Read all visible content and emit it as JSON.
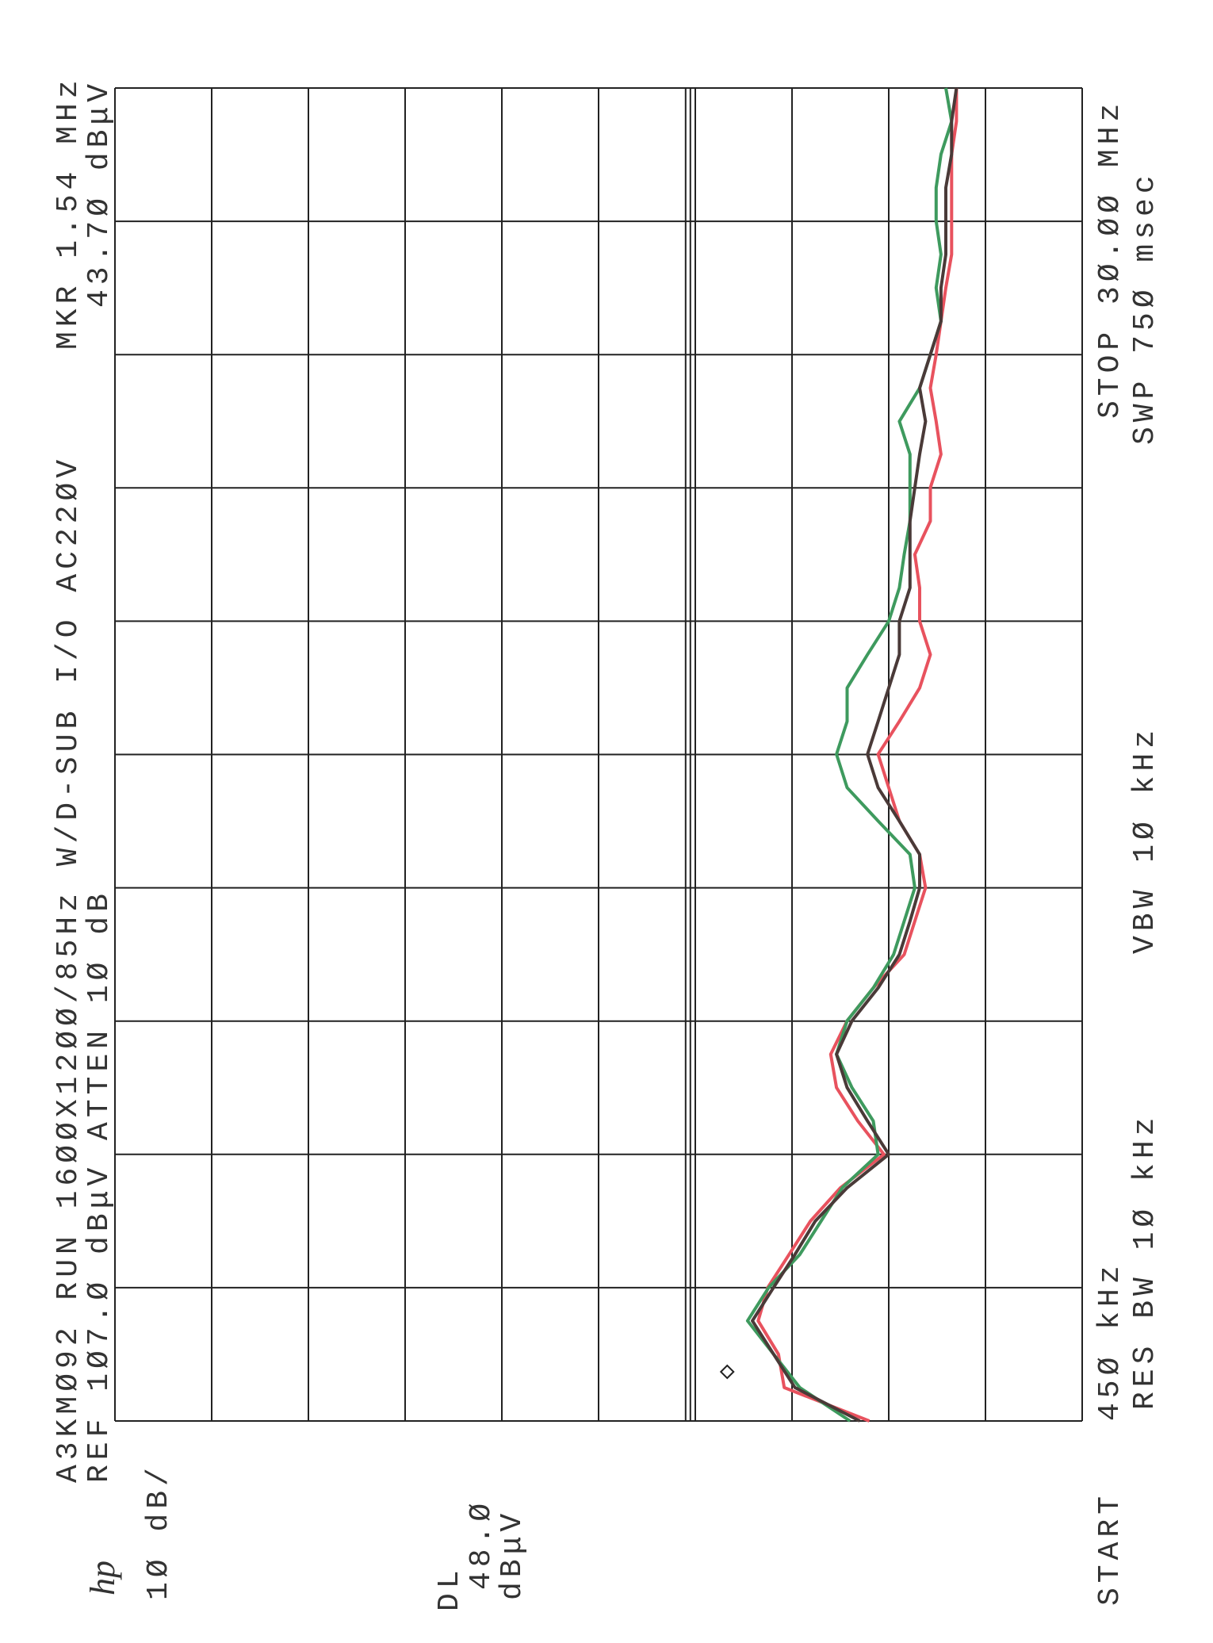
{
  "chart_data": {
    "type": "line",
    "title": "A3KMØ92 RUN 16ØØX12ØØ/85Hz W/D-SUB I/O AC22ØV",
    "subtitle": "REF 1Ø7.Ø dBμV   ATTEN 1Ø dB",
    "scale_label": "1Ø dB/",
    "logo": "hp",
    "marker": {
      "x": 1.54,
      "y": 43.7,
      "label": "MKR 1.54 MHz",
      "value_label": "43.7Ø dBμV"
    },
    "display_line": {
      "name": "DL",
      "value": 48,
      "label": "48.Ø",
      "unit": "dBμV"
    },
    "start_label": "START",
    "start_value": "45Ø kHz",
    "stop_label": "STOP 3Ø.ØØ MHz",
    "res_bw": "RES BW 1Ø kHz",
    "vbw": "VBW 1Ø kHz",
    "sweep": "SWP 75Ø msec",
    "xlim": [
      0.45,
      30
    ],
    "ylim": [
      7,
      107
    ],
    "xticks": [
      0.45,
      3.405,
      6.36,
      9.315,
      12.27,
      15.225,
      18.18,
      21.135,
      24.09,
      27.045,
      30
    ],
    "yticks": [
      7,
      17,
      27,
      37,
      47,
      57,
      67,
      77,
      87,
      97,
      107
    ],
    "grid": true,
    "x": [
      0.45,
      1.19,
      1.93,
      2.67,
      3.41,
      4.14,
      4.88,
      5.62,
      6.36,
      7.1,
      7.84,
      8.58,
      9.32,
      10.05,
      10.79,
      11.53,
      12.27,
      13.01,
      13.75,
      14.49,
      15.23,
      15.96,
      16.7,
      17.44,
      18.18,
      18.92,
      19.66,
      20.4,
      21.14,
      21.88,
      22.61,
      23.35,
      24.09,
      24.83,
      25.57,
      26.31,
      27.05,
      27.79,
      28.53,
      29.26,
      30.0
    ],
    "series": [
      {
        "color": "#e8525e",
        "values": [
          29,
          37.8,
          38.4,
          40.5,
          39.5,
          37.3,
          35.1,
          32.0,
          27.5,
          30.2,
          32.4,
          33.0,
          31.3,
          28.6,
          25.4,
          24.3,
          23.2,
          23.8,
          25.9,
          27.0,
          28.1,
          25.9,
          23.8,
          22.7,
          23.8,
          23.8,
          24.3,
          22.7,
          22.7,
          21.6,
          22.1,
          22.7,
          22.1,
          21.6,
          21.1,
          20.5,
          20.5,
          20.5,
          20.5,
          20.0,
          20.0
        ]
      },
      {
        "color": "#3e9a5e",
        "values": [
          31,
          36.2,
          38.9,
          41.6,
          39.4,
          36.2,
          34.0,
          31.8,
          28.1,
          28.6,
          30.8,
          32.4,
          31.3,
          28.6,
          26.5,
          25.4,
          24.3,
          24.8,
          28.1,
          31.3,
          32.4,
          31.3,
          31.3,
          29.2,
          27.0,
          25.9,
          25.4,
          24.8,
          24.8,
          24.8,
          25.9,
          23.8,
          22.7,
          21.6,
          22.1,
          21.6,
          22.1,
          22.1,
          21.6,
          20.5,
          21.1
        ]
      },
      {
        "color": "#4a3a38",
        "values": [
          30,
          36.7,
          38.9,
          41.1,
          38.9,
          36.7,
          34.6,
          31.3,
          27.0,
          29.2,
          31.3,
          32.4,
          30.8,
          28.1,
          25.9,
          24.8,
          23.8,
          23.8,
          25.9,
          28.1,
          29.2,
          28.1,
          27.0,
          25.9,
          25.9,
          24.8,
          24.8,
          24.8,
          24.3,
          23.8,
          23.2,
          23.8,
          22.7,
          21.6,
          21.6,
          21.1,
          21.1,
          21.1,
          20.5,
          20.5,
          20.0
        ]
      }
    ]
  }
}
